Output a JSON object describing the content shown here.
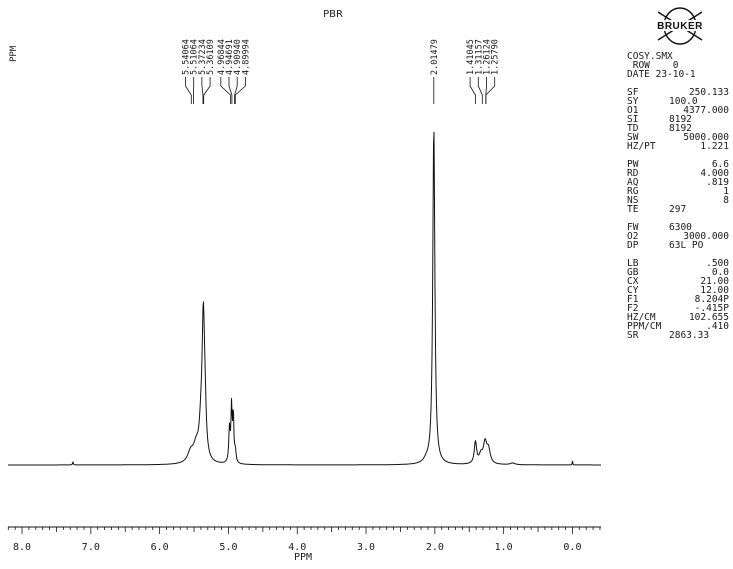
{
  "header": {
    "title": "PBR",
    "y_unit": "PPM",
    "logo_text": "BRUKER"
  },
  "params": {
    "header_lines": [
      "COSY.SMX",
      " ROW    0",
      "DATE 23-10-1"
    ],
    "groups": [
      [
        {
          "k": "SF",
          "v": "250.133"
        },
        {
          "k": "SY",
          "v": "100.0",
          "inline": true
        },
        {
          "k": "O1",
          "v": "4377.000"
        },
        {
          "k": "SI",
          "v": "8192",
          "inline": true
        },
        {
          "k": "TD",
          "v": "8192",
          "inline": true
        },
        {
          "k": "SW",
          "v": "5000.000"
        },
        {
          "k": "HZ/PT",
          "v": "1.221"
        }
      ],
      [
        {
          "k": "PW",
          "v": "6.6"
        },
        {
          "k": "RD",
          "v": "4.000"
        },
        {
          "k": "AQ",
          "v": ".819"
        },
        {
          "k": "RG",
          "v": "1"
        },
        {
          "k": "NS",
          "v": "8"
        },
        {
          "k": "TE",
          "v": "297",
          "inline": true
        }
      ],
      [
        {
          "k": "FW",
          "v": "6300",
          "inline": true
        },
        {
          "k": "O2",
          "v": "3000.000"
        },
        {
          "k": "DP",
          "v": "63L PO",
          "inline": true
        }
      ],
      [
        {
          "k": "LB",
          "v": ".500"
        },
        {
          "k": "GB",
          "v": "0.0"
        },
        {
          "k": "CX",
          "v": "21.00"
        },
        {
          "k": "CY",
          "v": "12.00"
        },
        {
          "k": "F1",
          "v": "8.204P"
        },
        {
          "k": "F2",
          "v": "-.415P"
        },
        {
          "k": "HZ/CM",
          "v": "102.655"
        },
        {
          "k": "PPM/CM",
          "v": ".410"
        },
        {
          "k": "SR",
          "v": "2863.33",
          "inline": true
        }
      ]
    ]
  },
  "chart_data": {
    "type": "line",
    "title": "PBR",
    "xlabel": "PPM",
    "ylabel": "",
    "xlim": [
      8.204,
      -0.415
    ],
    "ylim": [
      0,
      100
    ],
    "x_ticks": [
      "8.0",
      "7.0",
      "6.0",
      "5.0",
      "4.0",
      "3.0",
      "2.0",
      "1.0",
      "0.0"
    ],
    "x_tick_values": [
      8,
      7,
      6,
      5,
      4,
      3,
      2,
      1,
      0
    ],
    "peak_labels": [
      {
        "text": "5.54064",
        "ppm": 5.54
      },
      {
        "text": "5.51064",
        "ppm": 5.51
      },
      {
        "text": "5.37234",
        "ppm": 5.37
      },
      {
        "text": "5.36109",
        "ppm": 5.36
      },
      {
        "text": "4.96844",
        "ppm": 4.97
      },
      {
        "text": "4.94691",
        "ppm": 4.95
      },
      {
        "text": "4.90940",
        "ppm": 4.91
      },
      {
        "text": "4.89994",
        "ppm": 4.9
      },
      {
        "text": "2.01479",
        "ppm": 2.015
      },
      {
        "text": "1.41045",
        "ppm": 1.41
      },
      {
        "text": "1.31157",
        "ppm": 1.31
      },
      {
        "text": "1.26124",
        "ppm": 1.26
      },
      {
        "text": "1.25790",
        "ppm": 1.258
      }
    ],
    "series": [
      {
        "peaks": [
          {
            "center": 7.26,
            "height": 1.0,
            "width": 0.006
          },
          {
            "center": 5.55,
            "height": 3.0,
            "width": 0.05
          },
          {
            "center": 5.47,
            "height": 4.5,
            "width": 0.05
          },
          {
            "center": 5.4,
            "height": 8.0,
            "width": 0.03
          },
          {
            "center": 5.365,
            "height": 40.0,
            "width": 0.022
          },
          {
            "center": 5.34,
            "height": 10.0,
            "width": 0.02
          },
          {
            "center": 4.985,
            "height": 10.0,
            "width": 0.012
          },
          {
            "center": 4.955,
            "height": 16.0,
            "width": 0.01
          },
          {
            "center": 4.93,
            "height": 14.0,
            "width": 0.01
          },
          {
            "center": 4.9,
            "height": 3.5,
            "width": 0.012
          },
          {
            "center": 2.12,
            "height": 1.0,
            "width": 0.05
          },
          {
            "center": 2.015,
            "height": 100.0,
            "width": 0.018
          },
          {
            "center": 1.41,
            "height": 6.5,
            "width": 0.02
          },
          {
            "center": 1.33,
            "height": 2.5,
            "width": 0.03
          },
          {
            "center": 1.27,
            "height": 6.0,
            "width": 0.03
          },
          {
            "center": 1.22,
            "height": 4.0,
            "width": 0.03
          },
          {
            "center": 0.87,
            "height": 0.5,
            "width": 0.04
          },
          {
            "center": 0.0,
            "height": 1.2,
            "width": 0.004
          }
        ]
      }
    ]
  }
}
